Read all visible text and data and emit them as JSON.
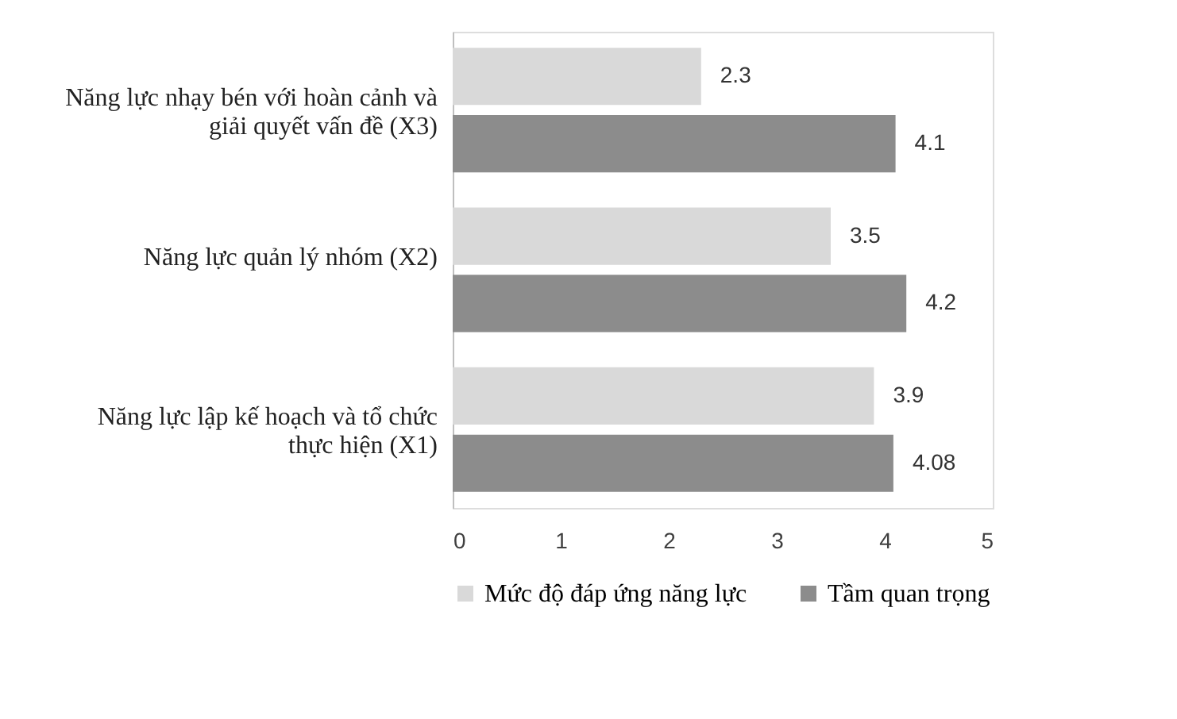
{
  "chart_data": {
    "type": "bar",
    "orientation": "horizontal",
    "categories": [
      "Năng lực nhạy bén với hoàn cảnh và giải quyết vấn đề (X3)",
      "Năng lực quản lý nhóm  (X2)",
      "Năng lực lập kế hoạch và tổ chức thực hiện (X1)"
    ],
    "series": [
      {
        "name": "Mức độ đáp ứng năng lực",
        "color": "#d9d9d9",
        "values": [
          2.3,
          3.5,
          3.9
        ]
      },
      {
        "name": "Tầm quan trọng",
        "color": "#8c8c8c",
        "values": [
          4.1,
          4.2,
          4.08
        ]
      }
    ],
    "xlim": [
      0,
      5
    ],
    "xticks": [
      0,
      1,
      2,
      3,
      4,
      5
    ],
    "grid": false,
    "legend": "bottom",
    "data_labels": true
  }
}
